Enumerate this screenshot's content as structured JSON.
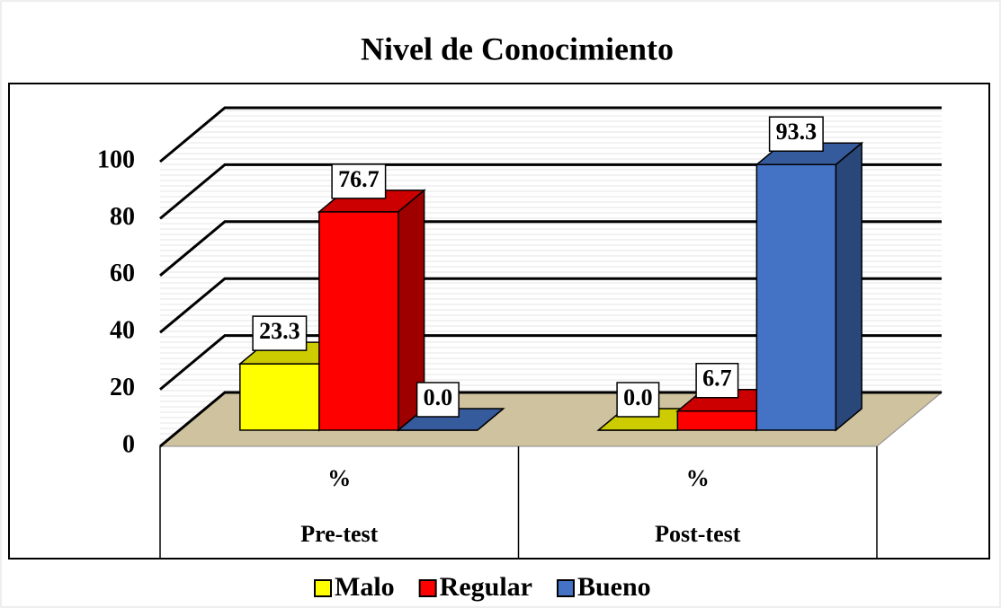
{
  "chart_data": {
    "type": "bar3d",
    "title": "Nivel de Conocimiento",
    "categories": [
      "Pre-test",
      "Post-test"
    ],
    "subcategories": [
      "%",
      "%"
    ],
    "series": [
      {
        "name": "Malo",
        "color": "#ffff00",
        "values": [
          23.3,
          0.0
        ],
        "value_labels": [
          "23.3",
          "0.0"
        ]
      },
      {
        "name": "Regular",
        "color": "#ff0000",
        "values": [
          76.7,
          6.7
        ],
        "value_labels": [
          "76.7",
          "6.7"
        ]
      },
      {
        "name": "Bueno",
        "color": "#4472c4",
        "values": [
          0.0,
          93.3
        ],
        "value_labels": [
          "0.0",
          "93.3"
        ]
      }
    ],
    "ylim": [
      0,
      100
    ],
    "yticks": [
      0,
      20,
      40,
      60,
      80,
      100
    ],
    "grid": true,
    "legend": "bottom"
  }
}
